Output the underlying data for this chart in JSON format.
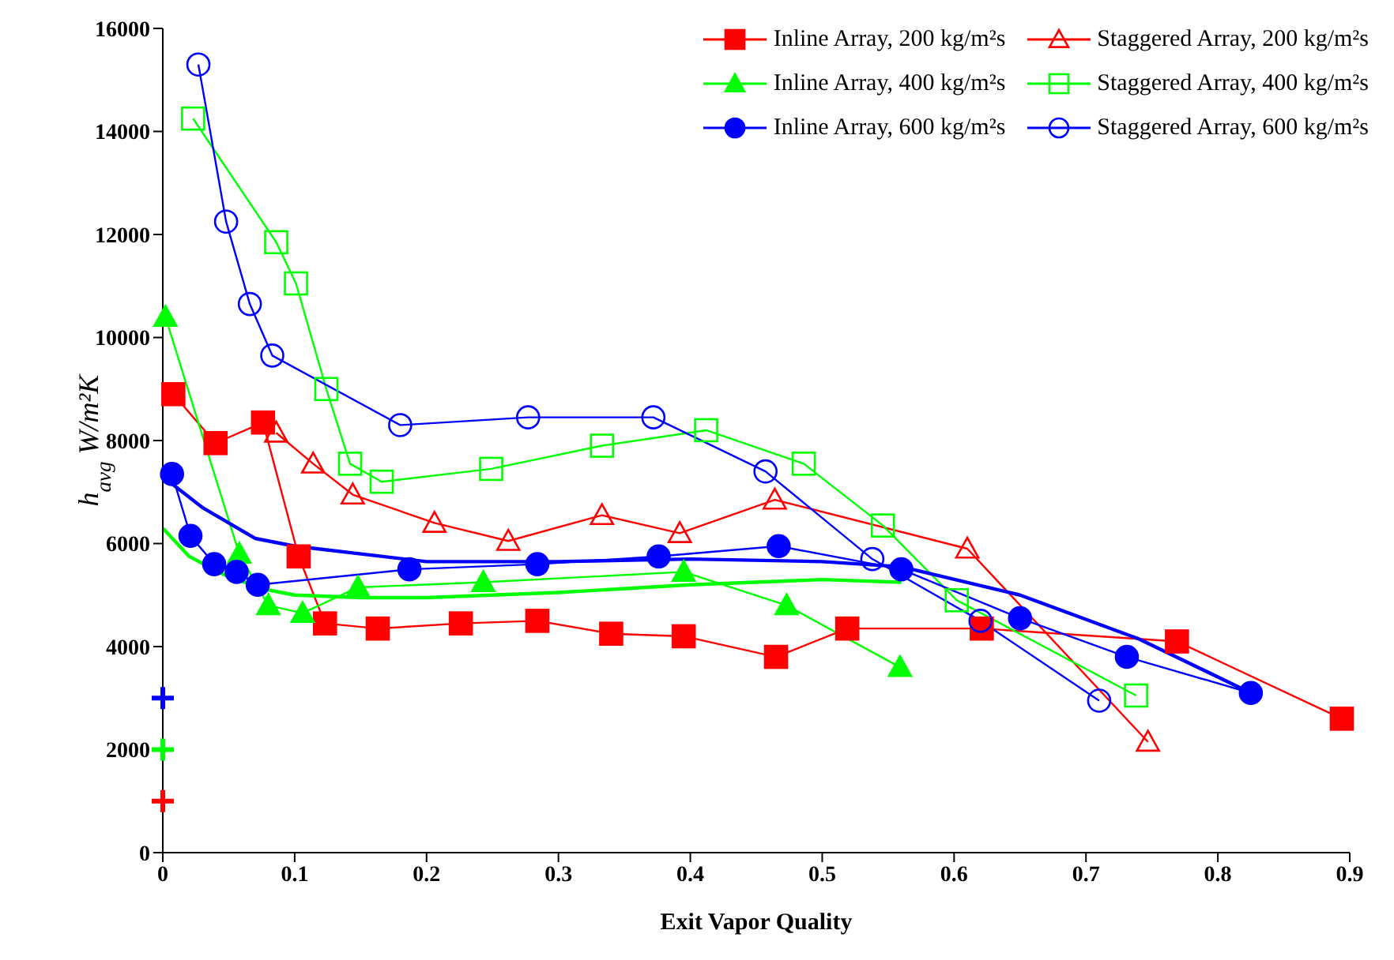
{
  "chart_data": {
    "type": "line",
    "xlabel": "Exit Vapor Quality",
    "ylabel": "h$_{avg}$ W/m²K",
    "xlim": [
      0,
      0.9
    ],
    "xticks": [
      0,
      0.1,
      0.2,
      0.3,
      0.4,
      0.5,
      0.6,
      0.7,
      0.8,
      0.9
    ],
    "ylim": [
      0,
      16000
    ],
    "yticks": [
      0,
      2000,
      4000,
      6000,
      8000,
      10000,
      12000,
      14000,
      16000
    ],
    "grid": false,
    "legend": "top right",
    "series": [
      {
        "name": "Inline Array, 200 kg/m²s",
        "color": "#ff0000",
        "marker": "square",
        "x": [
          0.008,
          0.04,
          0.076,
          0.103,
          0.123,
          0.163,
          0.226,
          0.284,
          0.34,
          0.395,
          0.465,
          0.519,
          0.621,
          0.769,
          0.894
        ],
        "values": [
          8900,
          7950,
          8350,
          5750,
          4450,
          4350,
          4450,
          4500,
          4250,
          4200,
          3800,
          4350,
          4350,
          4100,
          2600
        ]
      },
      {
        "name": "Staggered Array, 200 kg/m²s",
        "color": "#ff0000",
        "marker": "triangle",
        "x": [
          0.086,
          0.114,
          0.144,
          0.206,
          0.262,
          0.333,
          0.392,
          0.464,
          0.61,
          0.747
        ],
        "values": [
          8150,
          7550,
          6950,
          6400,
          6050,
          6550,
          6200,
          6850,
          5900,
          2150
        ]
      },
      {
        "name": "Inline Array, 400 kg/m²s",
        "color": "#00ff00",
        "marker": "triangle",
        "x": [
          0.002,
          0.058,
          0.08,
          0.106,
          0.148,
          0.243,
          0.395,
          0.473,
          0.559
        ],
        "values": [
          10400,
          5800,
          4800,
          4650,
          5150,
          5250,
          5450,
          4800,
          3600
        ]
      },
      {
        "name": "Staggered Array, 400 kg/m²s",
        "color": "#00ff00",
        "marker": "square",
        "x": [
          0.023,
          0.086,
          0.101,
          0.124,
          0.142,
          0.166,
          0.249,
          0.333,
          0.412,
          0.486,
          0.546,
          0.602,
          0.738
        ],
        "values": [
          14250,
          11850,
          11050,
          9000,
          7550,
          7200,
          7450,
          7900,
          8200,
          7550,
          6350,
          4900,
          3050
        ]
      },
      {
        "name": "Inline Array, 600 kg/m²s",
        "color": "#0000ff",
        "marker": "circle",
        "x": [
          0.007,
          0.021,
          0.039,
          0.056,
          0.072,
          0.187,
          0.284,
          0.376,
          0.467,
          0.56,
          0.65,
          0.731,
          0.825
        ],
        "values": [
          7350,
          6150,
          5600,
          5450,
          5200,
          5500,
          5600,
          5750,
          5950,
          5500,
          4550,
          3800,
          3100
        ]
      },
      {
        "name": "Staggered Array, 600 kg/m²s",
        "color": "#0000ff",
        "marker": "circle",
        "x": [
          0.027,
          0.048,
          0.066,
          0.083,
          0.18,
          0.277,
          0.372,
          0.457,
          0.538,
          0.62,
          0.71
        ],
        "values": [
          15300,
          12250,
          10650,
          9650,
          8300,
          8450,
          8450,
          7400,
          5700,
          4500,
          2950
        ]
      },
      {
        "type": "line",
        "color": "#00ff00",
        "marker": "none",
        "x": [
          0,
          0.02,
          0.05,
          0.08,
          0.1,
          0.15,
          0.2,
          0.3,
          0.4,
          0.5,
          0.56
        ],
        "values": [
          6300,
          5750,
          5350,
          5100,
          5000,
          4950,
          4950,
          5050,
          5200,
          5300,
          5250
        ]
      },
      {
        "type": "line",
        "color": "#0000ff",
        "marker": "none",
        "x": [
          0,
          0.03,
          0.07,
          0.1,
          0.2,
          0.3,
          0.4,
          0.5,
          0.56,
          0.65,
          0.74,
          0.825
        ],
        "values": [
          7300,
          6700,
          6100,
          5950,
          5650,
          5650,
          5700,
          5650,
          5550,
          5000,
          4150,
          3100
        ]
      },
      {
        "type": "scatter",
        "color": "#ff0000",
        "marker": "cross",
        "x": [
          0
        ],
        "values": [
          1000
        ]
      },
      {
        "type": "scatter",
        "color": "#00ff00",
        "marker": "cross",
        "x": [
          0
        ],
        "values": [
          2000
        ]
      },
      {
        "type": "scatter",
        "color": "#0000ff",
        "marker": "cross",
        "x": [
          0
        ],
        "values": [
          3000
        ]
      }
    ]
  }
}
